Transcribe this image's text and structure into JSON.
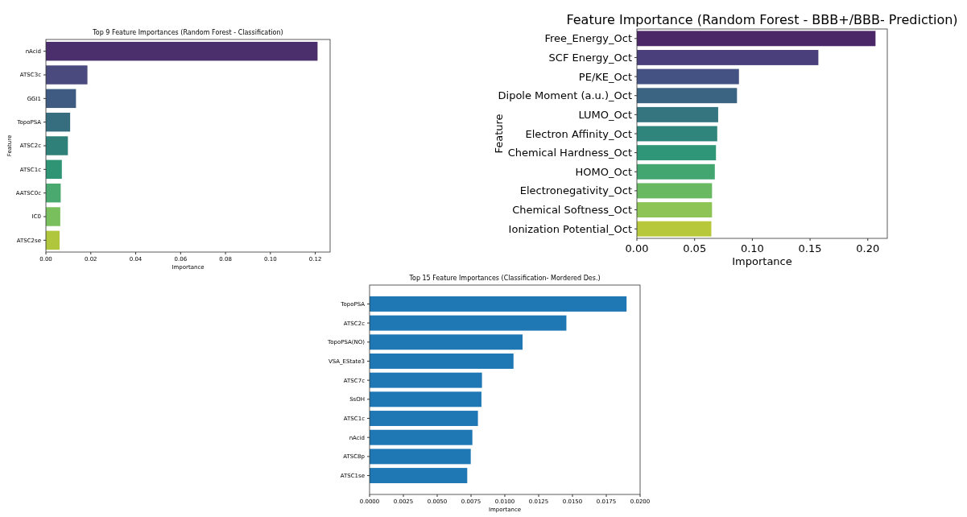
{
  "chart_data": [
    {
      "type": "bar",
      "orientation": "horizontal",
      "title": "Top 9 Feature Importances (Random Forest - Classification)",
      "xlabel": "Importance",
      "ylabel": "Feature",
      "categories": [
        "nAcid",
        "ATSC3c",
        "GGI1",
        "TopoPSA",
        "ATSC2c",
        "ATSC1c",
        "AATSC0c",
        "IC0",
        "ATSC2se"
      ],
      "values": [
        0.121,
        0.0185,
        0.0134,
        0.0108,
        0.0098,
        0.0071,
        0.0066,
        0.0064,
        0.0061
      ],
      "colors": [
        "#4b2e6c",
        "#4a4a7e",
        "#3f5b82",
        "#366e7f",
        "#2f8078",
        "#2e9474",
        "#4aa96f",
        "#7abf5e",
        "#b0c63d"
      ],
      "xlim": [
        0,
        0.1266
      ],
      "xticks": [
        {
          "value": 0,
          "label": "0.00"
        },
        {
          "value": 0.02,
          "label": "0.02"
        },
        {
          "value": 0.04,
          "label": "0.04"
        },
        {
          "value": 0.06,
          "label": "0.06"
        },
        {
          "value": 0.08,
          "label": "0.08"
        },
        {
          "value": 0.1,
          "label": "0.10"
        },
        {
          "value": 0.12,
          "label": "0.12"
        }
      ]
    },
    {
      "type": "bar",
      "orientation": "horizontal",
      "title": "Feature Importance (Random Forest - BBB+/BBB- Prediction)",
      "xlabel": "Importance",
      "ylabel": "Feature",
      "categories": [
        "Free_Energy_Oct",
        "SCF Energy_Oct",
        "PE/KE_Oct",
        "Dipole Moment (a.u.)_Oct",
        "LUMO_Oct",
        "Electron Affinity_Oct",
        "Chemical Hardness_Oct",
        "HOMO_Oct",
        "Electronegativity_Oct",
        "Chemical Softness_Oct",
        "Ionization Potential_Oct"
      ],
      "values": [
        0.2067,
        0.1572,
        0.0884,
        0.0867,
        0.0704,
        0.0696,
        0.0685,
        0.0675,
        0.0651,
        0.0651,
        0.0645
      ],
      "colors": [
        "#4b2767",
        "#4a3f7b",
        "#435283",
        "#3b6482",
        "#347580",
        "#2f857c",
        "#2f9677",
        "#43a671",
        "#68b962",
        "#8ec455",
        "#b7c93b"
      ],
      "xlim": [
        0,
        0.2169
      ],
      "xticks": [
        {
          "value": 0,
          "label": "0.00"
        },
        {
          "value": 0.05,
          "label": "0.05"
        },
        {
          "value": 0.1,
          "label": "0.10"
        },
        {
          "value": 0.15,
          "label": "0.15"
        },
        {
          "value": 0.2,
          "label": "0.20"
        }
      ]
    },
    {
      "type": "bar",
      "orientation": "horizontal",
      "title": "Top 15 Feature Importances (Classification- Mordered Des.)",
      "xlabel": "Importance",
      "categories": [
        "TopoPSA",
        "ATSC2c",
        "TopoPSA(NO)",
        "VSA_EState3",
        "ATSC7c",
        "SsOH",
        "ATSC1c",
        "nAcid",
        "ATSC8p",
        "ATSC1se"
      ],
      "values": [
        0.019,
        0.01455,
        0.01131,
        0.01064,
        0.00831,
        0.00827,
        0.00801,
        0.0076,
        0.00748,
        0.00722
      ],
      "colors": [
        "#1f77b4",
        "#1f77b4",
        "#1f77b4",
        "#1f77b4",
        "#1f77b4",
        "#1f77b4",
        "#1f77b4",
        "#1f77b4",
        "#1f77b4",
        "#1f77b4"
      ],
      "xlim": [
        0,
        0.02
      ],
      "xticks": [
        {
          "value": 0,
          "label": "0.0000"
        },
        {
          "value": 0.0025,
          "label": "0.0025"
        },
        {
          "value": 0.005,
          "label": "0.0050"
        },
        {
          "value": 0.0075,
          "label": "0.0075"
        },
        {
          "value": 0.01,
          "label": "0.0100"
        },
        {
          "value": 0.0125,
          "label": "0.0125"
        },
        {
          "value": 0.015,
          "label": "0.0150"
        },
        {
          "value": 0.0175,
          "label": "0.0175"
        },
        {
          "value": 0.02,
          "label": "0.0200"
        }
      ]
    }
  ]
}
